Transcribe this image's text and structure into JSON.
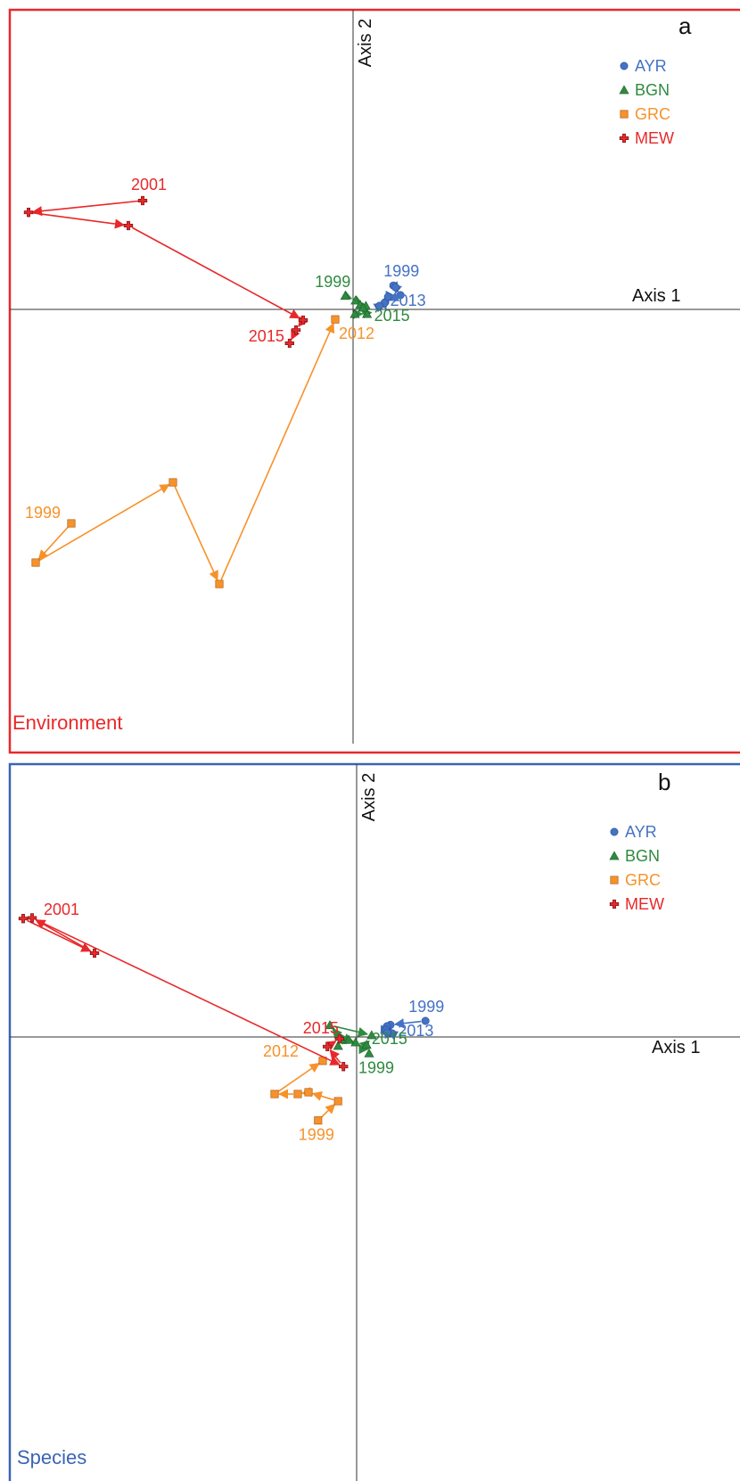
{
  "chart_data": [
    {
      "type": "scatter",
      "panel_letter": "a",
      "title": "Environment",
      "xlabel": "Axis 1",
      "ylabel": "Axis 2",
      "accent_color": "#e8282a",
      "legend": [
        {
          "name": "AYR",
          "color": "#4472c4",
          "marker": "circle"
        },
        {
          "name": "BGN",
          "color": "#2e8b3e",
          "marker": "triangle"
        },
        {
          "name": "GRC",
          "color": "#f7922a",
          "marker": "square"
        },
        {
          "name": "MEW",
          "color": "#e8282a",
          "marker": "cross"
        }
      ],
      "series": [
        {
          "name": "AYR",
          "points": [
            [
              1.13,
              0.67
            ],
            [
              1.19,
              0.62
            ],
            [
              1.33,
              0.4
            ],
            [
              0.9,
              0.2
            ],
            [
              0.98,
              0.35
            ],
            [
              0.88,
              0.18
            ],
            [
              0.74,
              0.1
            ]
          ],
          "labels": [
            {
              "text": "1999",
              "at": 0
            },
            {
              "text": "2013",
              "at": 6
            }
          ]
        },
        {
          "name": "BGN",
          "points": [
            [
              -0.22,
              0.38
            ],
            [
              0.07,
              0.25
            ],
            [
              0.36,
              0.1
            ],
            [
              0.05,
              -0.13
            ],
            [
              0.39,
              -0.13
            ],
            [
              0.2,
              0.13
            ],
            [
              0.28,
              0.05
            ]
          ],
          "labels": [
            {
              "text": "1999",
              "at": 0
            },
            {
              "text": "2015",
              "at": 4
            }
          ]
        },
        {
          "name": "GRC",
          "points": [
            [
              -7.9,
              -6.0
            ],
            [
              -8.9,
              -7.1
            ],
            [
              -5.05,
              -4.85
            ],
            [
              -3.75,
              -7.7
            ],
            [
              -0.5,
              -0.28
            ]
          ],
          "labels": [
            {
              "text": "1999",
              "at": 0
            },
            {
              "text": "2012",
              "at": 4
            }
          ]
        },
        {
          "name": "MEW",
          "points": [
            [
              -5.9,
              3.05
            ],
            [
              -9.1,
              2.72
            ],
            [
              -6.3,
              2.35
            ],
            [
              -1.4,
              -0.3
            ],
            [
              -1.6,
              -0.58
            ],
            [
              -1.78,
              -0.95
            ]
          ],
          "labels": [
            {
              "text": "2001",
              "at": 0
            },
            {
              "text": "2015",
              "at": 5
            }
          ]
        }
      ]
    },
    {
      "type": "scatter",
      "panel_letter": "b",
      "title": "Species",
      "xlabel": "Axis 1",
      "ylabel": "Axis 2",
      "accent_color": "#3b64b4",
      "legend": [
        {
          "name": "AYR",
          "color": "#4472c4",
          "marker": "circle"
        },
        {
          "name": "BGN",
          "color": "#2e8b3e",
          "marker": "triangle"
        },
        {
          "name": "GRC",
          "color": "#f7922a",
          "marker": "square"
        },
        {
          "name": "MEW",
          "color": "#e8282a",
          "marker": "cross"
        }
      ],
      "series": [
        {
          "name": "AYR",
          "points": [
            [
              1.93,
              0.45
            ],
            [
              0.95,
              0.34
            ],
            [
              0.88,
              0.17
            ],
            [
              1.0,
              0.1
            ],
            [
              0.85,
              0.3
            ],
            [
              0.82,
              0.2
            ],
            [
              0.86,
              0.12
            ]
          ],
          "labels": [
            {
              "text": "1999",
              "at": 0
            },
            {
              "text": "2013",
              "at": 6
            }
          ]
        },
        {
          "name": "BGN",
          "points": [
            [
              0.35,
              -0.46
            ],
            [
              0.28,
              -0.22
            ],
            [
              -0.03,
              -0.15
            ],
            [
              -0.22,
              -0.08
            ],
            [
              -0.52,
              -0.25
            ],
            [
              -0.42,
              -0.07
            ],
            [
              -0.75,
              0.33
            ],
            [
              0.42,
              0.05
            ]
          ],
          "labels": [
            {
              "text": "1999",
              "at": 0
            },
            {
              "text": "2015",
              "at": 7
            }
          ]
        },
        {
          "name": "GRC",
          "points": [
            [
              -1.08,
              -2.34
            ],
            [
              -0.52,
              -1.8
            ],
            [
              -1.35,
              -1.55
            ],
            [
              -1.65,
              -1.6
            ],
            [
              -2.3,
              -1.6
            ],
            [
              -0.95,
              -0.67
            ]
          ],
          "labels": [
            {
              "text": "1999",
              "at": 0
            },
            {
              "text": "2012",
              "at": 5
            }
          ]
        },
        {
          "name": "MEW",
          "points": [
            [
              -9.35,
              3.32
            ],
            [
              -7.35,
              2.35
            ],
            [
              -9.1,
              3.34
            ],
            [
              -0.37,
              -0.83
            ],
            [
              -0.82,
              -0.27
            ],
            [
              -0.48,
              -0.05
            ]
          ],
          "labels": [
            {
              "text": "2001",
              "at": 0
            },
            {
              "text": "2015",
              "at": 5
            }
          ]
        }
      ]
    }
  ]
}
